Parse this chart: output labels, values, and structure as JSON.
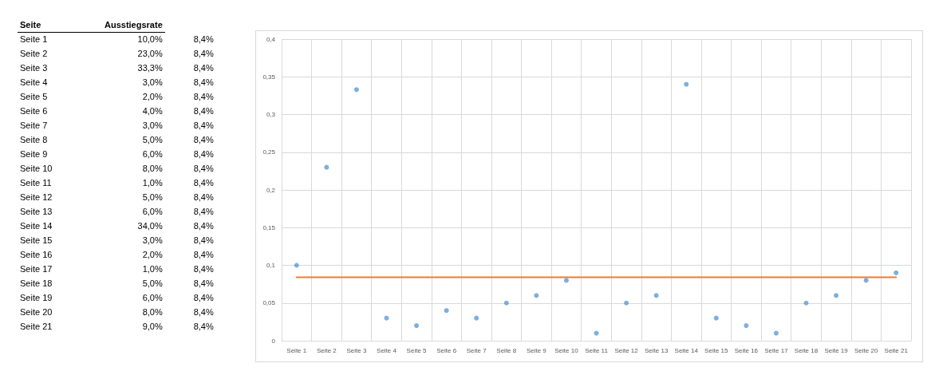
{
  "chart_data": [
    {
      "type": "other",
      "annotations": [
        "Seite",
        "Ausstiegsrate",
        "Seite 1",
        "10,0%",
        "8,4%",
        "Seite 2",
        "23,0%",
        "8,4%",
        "Seite 3",
        "33,3%",
        "8,4%",
        "Seite 4",
        "3,0%",
        "8,4%",
        "Seite 5",
        "2,0%",
        "8,4%",
        "Seite 6",
        "4,0%",
        "8,4%",
        "Seite 7",
        "3,0%",
        "8,4%",
        "Seite 8",
        "5,0%",
        "8,4%",
        "Seite 9",
        "6,0%",
        "8,4%",
        "Seite 10",
        "8,0%",
        "8,4%",
        "Seite 11",
        "1,0%",
        "8,4%",
        "Seite 12",
        "5,0%",
        "8,4%",
        "Seite 13",
        "6,0%",
        "8,4%",
        "Seite 14",
        "34,0%",
        "8,4%",
        "Seite 15",
        "3,0%",
        "8,4%",
        "Seite 16",
        "2,0%",
        "8,4%",
        "Seite 17",
        "1,0%",
        "8,4%",
        "Seite 18",
        "5,0%",
        "8,4%",
        "Seite 19",
        "6,0%",
        "8,4%",
        "Seite 20",
        "8,0%",
        "8,4%",
        "Seite 21",
        "9,0%",
        "8,4%"
      ]
    },
    {
      "type": "scatter",
      "categories": [
        "Seite 1",
        "Seite 2",
        "Seite 3",
        "Seite 4",
        "Seite 5",
        "Seite 6",
        "Seite 7",
        "Seite 8",
        "Seite 9",
        "Seite 10",
        "Seite 11",
        "Seite 12",
        "Seite 13",
        "Seite 14",
        "Seite 15",
        "Seite 16",
        "Seite 17",
        "Seite 18",
        "Seite 19",
        "Seite 20",
        "Seite 21"
      ],
      "series": [
        {
          "type": "scatter",
          "color": "#5b9bd5",
          "marker": "circle",
          "values": [
            0.1,
            0.23,
            0.333,
            0.03,
            0.02,
            0.04,
            0.03,
            0.05,
            0.06,
            0.08,
            0.01,
            0.05,
            0.06,
            0.34,
            0.03,
            0.02,
            0.01,
            0.05,
            0.06,
            0.08,
            0.09
          ]
        },
        {
          "type": "line",
          "color": "#ed7d31",
          "marker": "none",
          "line_style": "solid",
          "values": [
            0.084,
            0.084,
            0.084,
            0.084,
            0.084,
            0.084,
            0.084,
            0.084,
            0.084,
            0.084,
            0.084,
            0.084,
            0.084,
            0.084,
            0.084,
            0.084,
            0.084,
            0.084,
            0.084,
            0.084,
            0.084
          ]
        }
      ],
      "ylim": [
        0,
        0.4
      ],
      "yticks": [
        0,
        {
          "value": 0.05,
          "label": "0,05"
        },
        {
          "value": 0.1,
          "label": "0,1"
        },
        {
          "value": 0.15,
          "label": "0,15"
        },
        {
          "value": 0.2,
          "label": "0,2"
        },
        {
          "value": 0.25,
          "label": "0,25"
        },
        {
          "value": 0.3,
          "label": "0,3"
        },
        {
          "value": 0.35,
          "label": "0,35"
        },
        {
          "value": 0.4,
          "label": "0,4"
        }
      ],
      "grid": true
    }
  ]
}
